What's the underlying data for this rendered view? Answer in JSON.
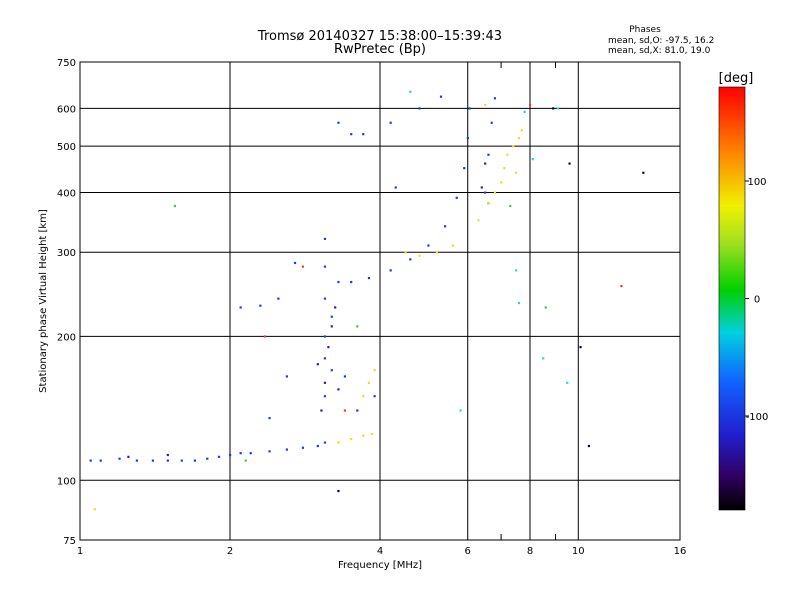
{
  "chart_data": {
    "type": "scatter",
    "title": "Tromsø 20140327 15:38:00–15:39:43",
    "subtitle": "RwPretec (Bp)",
    "xlabel": "Frequency [MHz]",
    "ylabel": "Stationary phase Virtual Height [km]",
    "x_scale": "log",
    "y_scale": "log",
    "xlim": [
      1,
      16
    ],
    "ylim": [
      75,
      750
    ],
    "x_ticks": [
      1,
      2,
      4,
      6,
      8,
      10,
      16
    ],
    "y_ticks": [
      75,
      100,
      200,
      300,
      400,
      500,
      600,
      750
    ],
    "x_minor_ticks": [
      7,
      9
    ],
    "grid": true,
    "phase_info": {
      "heading": "Phases",
      "line_o": "mean, sd,O: -97.5, 16.2",
      "line_x": "mean, sd,X:  81.0, 19.0"
    },
    "colorbar": {
      "label": "[deg]",
      "range": [
        -180,
        180
      ],
      "ticks": [
        100,
        0,
        -100
      ]
    },
    "series": [
      {
        "color": "#1040e8",
        "points": [
          [
            1.05,
            110
          ],
          [
            1.1,
            110
          ],
          [
            1.2,
            111
          ],
          [
            1.3,
            110
          ],
          [
            1.4,
            110
          ],
          [
            1.5,
            110
          ],
          [
            1.6,
            110
          ],
          [
            1.7,
            110
          ],
          [
            1.8,
            111
          ],
          [
            1.9,
            112
          ],
          [
            2.0,
            113
          ],
          [
            2.1,
            114
          ],
          [
            2.2,
            114
          ],
          [
            2.4,
            115
          ],
          [
            2.6,
            116
          ],
          [
            2.8,
            117
          ],
          [
            3.0,
            118
          ],
          [
            3.1,
            120
          ],
          [
            3.1,
            150
          ],
          [
            3.1,
            180
          ],
          [
            3.1,
            200
          ],
          [
            3.1,
            240
          ],
          [
            3.1,
            280
          ],
          [
            3.1,
            320
          ],
          [
            3.2,
            170
          ],
          [
            3.2,
            220
          ],
          [
            3.3,
            260
          ],
          [
            3.5,
            260
          ],
          [
            3.8,
            265
          ],
          [
            4.2,
            275
          ],
          [
            4.6,
            290
          ],
          [
            5.0,
            310
          ],
          [
            5.4,
            340
          ],
          [
            5.7,
            390
          ],
          [
            5.9,
            450
          ],
          [
            6.0,
            520
          ],
          [
            6.05,
            600
          ],
          [
            2.1,
            230
          ],
          [
            2.3,
            232
          ],
          [
            2.5,
            240
          ],
          [
            2.7,
            285
          ],
          [
            2.4,
            135
          ],
          [
            2.6,
            165
          ],
          [
            3.5,
            530
          ],
          [
            3.7,
            530
          ],
          [
            4.2,
            560
          ],
          [
            4.8,
            600
          ],
          [
            5.3,
            635
          ],
          [
            6.5,
            400
          ],
          [
            6.6,
            480
          ],
          [
            6.7,
            560
          ],
          [
            6.8,
            630
          ],
          [
            3.6,
            140
          ],
          [
            3.9,
            150
          ],
          [
            3.4,
            165
          ],
          [
            4.3,
            410
          ],
          [
            3.3,
            560
          ]
        ]
      },
      {
        "color": "#3020a0",
        "points": [
          [
            3.05,
            140
          ],
          [
            3.1,
            160
          ],
          [
            3.15,
            190
          ],
          [
            3.2,
            210
          ],
          [
            3.25,
            230
          ],
          [
            3.0,
            175
          ],
          [
            6.4,
            410
          ],
          [
            6.5,
            460
          ],
          [
            6.6,
            380
          ],
          [
            1.25,
            112
          ],
          [
            1.5,
            113
          ],
          [
            3.3,
            155
          ]
        ]
      },
      {
        "color": "#e8e020",
        "points": [
          [
            3.3,
            120
          ],
          [
            3.5,
            122
          ],
          [
            3.7,
            124
          ],
          [
            3.85,
            125
          ],
          [
            3.7,
            150
          ],
          [
            3.8,
            160
          ],
          [
            3.9,
            170
          ],
          [
            4.5,
            300
          ],
          [
            4.8,
            295
          ],
          [
            5.2,
            300
          ],
          [
            5.6,
            310
          ],
          [
            6.3,
            350
          ],
          [
            6.6,
            380
          ],
          [
            6.8,
            400
          ],
          [
            7.0,
            420
          ],
          [
            7.1,
            450
          ],
          [
            7.2,
            480
          ],
          [
            7.4,
            500
          ],
          [
            7.6,
            520
          ],
          [
            7.7,
            540
          ],
          [
            1.07,
            87
          ],
          [
            6.5,
            610
          ],
          [
            7.5,
            440
          ]
        ]
      },
      {
        "color": "#20d8e0",
        "points": [
          [
            7.5,
            275
          ],
          [
            7.6,
            235
          ],
          [
            8.5,
            180
          ],
          [
            9.5,
            160
          ],
          [
            8.1,
            470
          ],
          [
            7.8,
            590
          ],
          [
            9.1,
            600
          ],
          [
            5.8,
            140
          ],
          [
            4.6,
            650
          ]
        ]
      },
      {
        "color": "#40c840",
        "points": [
          [
            1.55,
            375
          ],
          [
            2.15,
            110
          ],
          [
            7.3,
            375
          ],
          [
            8.6,
            230
          ],
          [
            3.6,
            210
          ]
        ]
      },
      {
        "color": "#e84020",
        "points": [
          [
            12.2,
            255
          ],
          [
            2.35,
            200
          ],
          [
            8.0,
            610
          ],
          [
            2.8,
            280
          ],
          [
            3.4,
            140
          ]
        ]
      },
      {
        "color": "#000060",
        "points": [
          [
            13.5,
            440
          ],
          [
            10.5,
            118
          ],
          [
            3.3,
            95
          ],
          [
            9.6,
            460
          ],
          [
            10.1,
            190
          ],
          [
            8.9,
            600
          ]
        ]
      }
    ]
  }
}
